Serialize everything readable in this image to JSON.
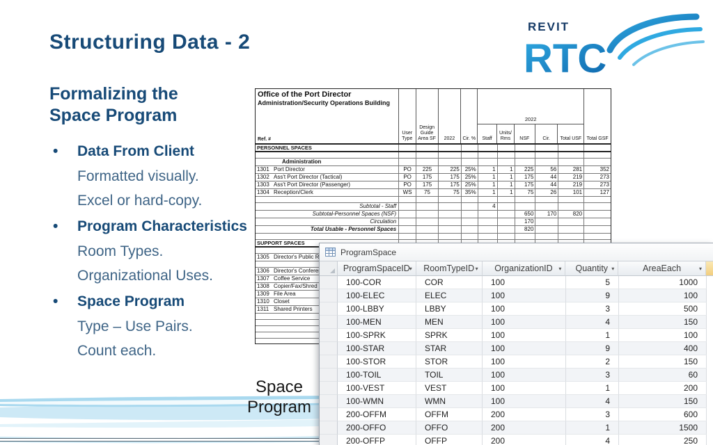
{
  "slide": {
    "title": "Structuring Data - 2",
    "heading_line1": "Formalizing the",
    "heading_line2": "Space Program",
    "caption_line1": "Space",
    "caption_line2": "Program",
    "colors": {
      "navy": "#174A77",
      "body_blue": "#3E6486",
      "wave_blue": "#A9D9EF",
      "logo_blue": "#2FA9E1"
    }
  },
  "logo": {
    "top_text": "REVIT",
    "main_text": "RTC"
  },
  "bullets": [
    {
      "label": "Data From Client",
      "subs": [
        "Formatted visually.",
        "Excel or hard-copy."
      ]
    },
    {
      "label": "Program Characteristics",
      "subs": [
        "Room Types.",
        "Organizational Uses."
      ]
    },
    {
      "label": "Space Program",
      "subs": [
        "Type – Use Pairs.",
        "Count each."
      ]
    }
  ],
  "scan_table": {
    "title": "Office of the Port Director",
    "subtitle": "Administration/Security Operations Building",
    "ref_label": "Ref. #",
    "group_header": "2022",
    "headers": {
      "user": "User Type",
      "dga": "Design Guide Area SF",
      "y2022": "2022",
      "cir_pct": "Cir. %",
      "staff": "Staff",
      "units": "Units/ Rms",
      "nsf": "NSF",
      "cir": "Cir.",
      "usf": "Total USF",
      "gsf": "Total GSF"
    },
    "rows": [
      {
        "style": "section",
        "name": "PERSONNEL SPACES"
      },
      {
        "style": "blank"
      },
      {
        "style": "subhead",
        "name": "Administration"
      },
      {
        "style": "data",
        "ref": "1301",
        "name": "Port Director",
        "cells": [
          "PO",
          "225",
          "225",
          "25%",
          "1",
          "1",
          "225",
          "56",
          "281",
          "352"
        ]
      },
      {
        "style": "data",
        "ref": "1302",
        "name": "Ass't Port Director (Tactical)",
        "cells": [
          "PO",
          "175",
          "175",
          "25%",
          "1",
          "1",
          "175",
          "44",
          "219",
          "273"
        ]
      },
      {
        "style": "data",
        "ref": "1303",
        "name": "Ass't Port Director (Passenger)",
        "cells": [
          "PO",
          "175",
          "175",
          "25%",
          "1",
          "1",
          "175",
          "44",
          "219",
          "273"
        ]
      },
      {
        "style": "data",
        "ref": "1304",
        "name": "Reception/Clerk",
        "cells": [
          "WS",
          "75",
          "75",
          "35%",
          "1",
          "1",
          "75",
          "26",
          "101",
          "127"
        ]
      },
      {
        "style": "blank"
      },
      {
        "style": "summary",
        "name": "Subtotal - Staff",
        "cells": [
          "",
          "",
          "",
          "",
          "4",
          "",
          "",
          "",
          "",
          ""
        ]
      },
      {
        "style": "summary",
        "name": "Subtotal-Personnel Spaces (NSF)",
        "cells": [
          "",
          "",
          "",
          "",
          "",
          "",
          "650",
          "170",
          "820",
          ""
        ]
      },
      {
        "style": "summary",
        "name": "Circulation",
        "cells": [
          "",
          "",
          "",
          "",
          "",
          "",
          "170",
          "",
          "",
          ""
        ]
      },
      {
        "style": "summarybold",
        "name": "Total Usable - Personnel Spaces",
        "cells": [
          "",
          "",
          "",
          "",
          "",
          "",
          "820",
          "",
          "",
          ""
        ]
      },
      {
        "style": "blank"
      },
      {
        "style": "section",
        "name": "SUPPORT SPACES"
      },
      {
        "style": "blank"
      },
      {
        "style": "data",
        "ref": "1305",
        "name": "Director's Public R"
      },
      {
        "style": "blank"
      },
      {
        "style": "data",
        "ref": "1306",
        "name": "Director's Conferen"
      },
      {
        "style": "data",
        "ref": "1307",
        "name": "Coffee Service"
      },
      {
        "style": "data",
        "ref": "1308",
        "name": "Copier/Fax/Shred"
      },
      {
        "style": "data",
        "ref": "1309",
        "name": "File Area"
      },
      {
        "style": "data",
        "ref": "1310",
        "name": "Closet"
      },
      {
        "style": "data",
        "ref": "1311",
        "name": "Shared Printers"
      },
      {
        "style": "blank"
      },
      {
        "style": "blank"
      },
      {
        "style": "blank"
      },
      {
        "style": "blank"
      },
      {
        "style": "blank"
      }
    ]
  },
  "access": {
    "tab_title": "ProgramSpace",
    "columns": [
      "ProgramSpaceID",
      "RoomTypeID",
      "OrganizationID",
      "Quantity",
      "AreaEach"
    ],
    "rows": [
      [
        "100-COR",
        "COR",
        "100",
        "5",
        "1000"
      ],
      [
        "100-ELEC",
        "ELEC",
        "100",
        "9",
        "100"
      ],
      [
        "100-LBBY",
        "LBBY",
        "100",
        "3",
        "500"
      ],
      [
        "100-MEN",
        "MEN",
        "100",
        "4",
        "150"
      ],
      [
        "100-SPRK",
        "SPRK",
        "100",
        "1",
        "100"
      ],
      [
        "100-STAR",
        "STAR",
        "100",
        "9",
        "400"
      ],
      [
        "100-STOR",
        "STOR",
        "100",
        "2",
        "150"
      ],
      [
        "100-TOIL",
        "TOIL",
        "100",
        "3",
        "60"
      ],
      [
        "100-VEST",
        "VEST",
        "100",
        "1",
        "200"
      ],
      [
        "100-WMN",
        "WMN",
        "100",
        "4",
        "150"
      ],
      [
        "200-OFFM",
        "OFFM",
        "200",
        "3",
        "600"
      ],
      [
        "200-OFFO",
        "OFFO",
        "200",
        "1",
        "1500"
      ],
      [
        "200-OFFP",
        "OFFP",
        "200",
        "4",
        "250"
      ]
    ]
  }
}
